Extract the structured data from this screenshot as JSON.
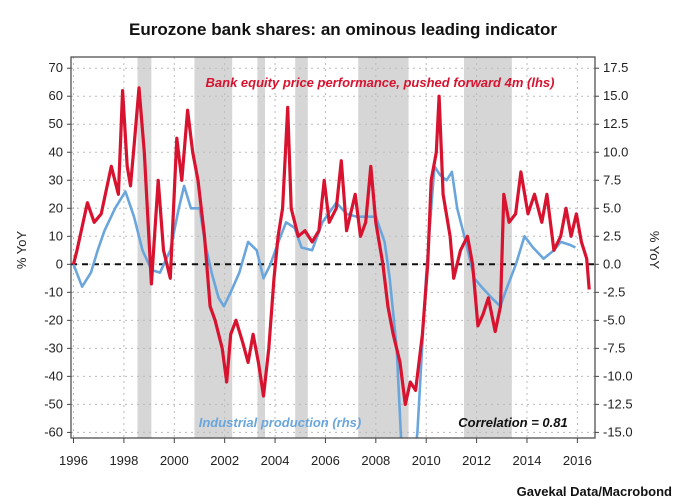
{
  "chart_data": {
    "type": "line",
    "title": "Eurozone bank shares: an ominous leading indicator",
    "source": "Gavekal Data/Macrobond",
    "ylabel_left": "% YoY",
    "ylabel_right": "% YoY",
    "xlim": [
      1995.9,
      2016.7
    ],
    "ylim_left": [
      -62,
      74
    ],
    "ylim_right": [
      -15.5,
      18.5
    ],
    "x_ticks": [
      "1996",
      "1998",
      "2000",
      "2002",
      "2004",
      "2006",
      "2008",
      "2010",
      "2012",
      "2014",
      "2016"
    ],
    "y_ticks_left": [
      "70",
      "60",
      "50",
      "40",
      "30",
      "20",
      "10",
      "0",
      "-10",
      "-20",
      "-30",
      "-40",
      "-50",
      "-60"
    ],
    "y_ticks_right": [
      "17.5",
      "15.0",
      "12.5",
      "10.0",
      "7.5",
      "5.0",
      "2.5",
      "0.0",
      "-2.5",
      "-5.0",
      "-7.5",
      "-10.0",
      "-12.5",
      "-15.0"
    ],
    "grid": true,
    "zero_line": "dashed",
    "shaded_periods": [
      [
        1998.54,
        1999.09
      ],
      [
        2000.8,
        2002.3
      ],
      [
        2003.3,
        2003.6
      ],
      [
        2004.8,
        2005.3
      ],
      [
        2007.3,
        2009.3
      ],
      [
        2011.5,
        2013.4
      ]
    ],
    "annotations": {
      "correlation": "Correlation = 0.81"
    },
    "series": [
      {
        "name": "Bank equity price performance, pushed forward 4m (lhs)",
        "axis": "left",
        "color": "#d7132f",
        "x": [
          1996.0,
          1996.14,
          1996.55,
          1996.82,
          1997.1,
          1997.5,
          1997.78,
          1997.95,
          1998.13,
          1998.26,
          1998.4,
          1998.6,
          1998.81,
          1999.09,
          1999.36,
          1999.57,
          1999.84,
          2000.1,
          2000.3,
          2000.53,
          2000.73,
          2000.94,
          2001.2,
          2001.42,
          2001.62,
          2001.9,
          2002.08,
          2002.24,
          2002.45,
          2002.72,
          2002.93,
          2003.13,
          2003.34,
          2003.54,
          2003.75,
          2003.96,
          2004.12,
          2004.3,
          2004.5,
          2004.64,
          2004.92,
          2005.19,
          2005.47,
          2005.74,
          2005.95,
          2006.15,
          2006.43,
          2006.63,
          2006.84,
          2007.18,
          2007.39,
          2007.6,
          2007.8,
          2008.0,
          2008.28,
          2008.48,
          2008.69,
          2008.96,
          2009.17,
          2009.37,
          2009.58,
          2009.85,
          2010.06,
          2010.2,
          2010.4,
          2010.51,
          2010.67,
          2010.95,
          2011.09,
          2011.36,
          2011.64,
          2011.84,
          2012.05,
          2012.25,
          2012.47,
          2012.74,
          2012.95,
          2013.08,
          2013.29,
          2013.55,
          2013.76,
          2014.04,
          2014.3,
          2014.59,
          2014.79,
          2015.07,
          2015.34,
          2015.55,
          2015.75,
          2015.96,
          2016.16,
          2016.37,
          2016.47
        ],
        "values": [
          0,
          5,
          22,
          15,
          18,
          35,
          25,
          62,
          35,
          28,
          42,
          63,
          40,
          -7,
          30,
          5,
          -5,
          45,
          30,
          55,
          40,
          30,
          10,
          -15,
          -20,
          -30,
          -42,
          -25,
          -20,
          -28,
          -35,
          -25,
          -35,
          -47,
          -30,
          -5,
          10,
          20,
          56,
          20,
          10,
          12,
          8,
          12,
          30,
          15,
          20,
          37,
          12,
          25,
          10,
          15,
          35,
          15,
          0,
          -15,
          -25,
          -35,
          -50,
          -42,
          -45,
          -25,
          0,
          30,
          40,
          60,
          25,
          10,
          -5,
          5,
          10,
          0,
          -22,
          -18,
          -12,
          -24,
          -15,
          25,
          15,
          18,
          33,
          18,
          25,
          15,
          25,
          5,
          10,
          20,
          10,
          18,
          8,
          2,
          -9
        ]
      },
      {
        "name": "Industrial production (rhs)",
        "axis": "right",
        "color": "#6aa6dc",
        "x": [
          1996.0,
          1996.34,
          1996.69,
          1996.96,
          1997.23,
          1997.65,
          1998.06,
          1998.4,
          1998.74,
          1999.09,
          1999.43,
          1999.84,
          2000.18,
          2000.39,
          2000.66,
          2001.01,
          2001.21,
          2001.48,
          2001.76,
          2001.97,
          2002.24,
          2002.58,
          2002.93,
          2003.27,
          2003.54,
          2003.82,
          2004.09,
          2004.44,
          2004.78,
          2005.05,
          2005.47,
          2005.88,
          2006.43,
          2006.84,
          2007.25,
          2007.66,
          2008.0,
          2008.35,
          2008.55,
          2008.83,
          2009.1,
          2009.37,
          2009.65,
          2009.99,
          2010.2,
          2010.33,
          2010.54,
          2010.81,
          2011.02,
          2011.23,
          2011.57,
          2011.91,
          2012.19,
          2012.6,
          2012.94,
          2013.22,
          2013.56,
          2013.9,
          2014.24,
          2014.66,
          2015.07,
          2015.34,
          2015.69,
          2015.92
        ],
        "values": [
          0,
          -2,
          -0.75,
          1.25,
          3,
          5,
          6.5,
          4.25,
          1.25,
          -0.5,
          -0.75,
          1.25,
          5,
          7,
          5,
          5,
          2,
          -0.75,
          -3,
          -3.75,
          -2.5,
          -0.75,
          2,
          1.25,
          -1.25,
          0,
          1.75,
          3.75,
          3.25,
          1.5,
          1.25,
          3.75,
          5.5,
          4.5,
          4.25,
          4.25,
          4.25,
          2,
          -1.25,
          -7.5,
          -20,
          -21,
          -15,
          -1.25,
          5,
          8.75,
          8,
          7.5,
          8.25,
          5,
          2,
          -1.25,
          -2,
          -3,
          -3.75,
          -2,
          0,
          2.5,
          1.5,
          0.5,
          1.25,
          2,
          1.75,
          1.5
        ]
      }
    ]
  }
}
